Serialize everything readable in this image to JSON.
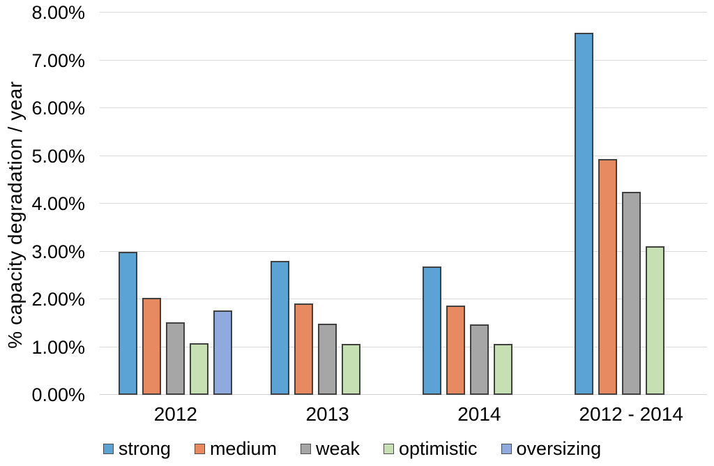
{
  "chart_data": {
    "type": "bar",
    "title": "",
    "xlabel": "",
    "ylabel": "% capacity degradation / year",
    "categories": [
      "2012",
      "2013",
      "2014",
      "2012 - 2014"
    ],
    "series": [
      {
        "name": "strong",
        "color": "#5BA3D5",
        "values": [
          3.0,
          2.8,
          2.68,
          7.57
        ]
      },
      {
        "name": "medium",
        "color": "#E78A61",
        "values": [
          2.03,
          1.91,
          1.87,
          4.93
        ]
      },
      {
        "name": "weak",
        "color": "#A6A6A6",
        "values": [
          1.52,
          1.49,
          1.47,
          4.25
        ]
      },
      {
        "name": "optimistic",
        "color": "#C6E0B4",
        "values": [
          1.08,
          1.07,
          1.06,
          3.11
        ]
      },
      {
        "name": "oversizing",
        "color": "#8FAADC",
        "values": [
          1.77,
          null,
          null,
          null
        ]
      }
    ],
    "y_axis": {
      "min": 0,
      "max": 8,
      "step": 1,
      "tick_labels": [
        "0.00%",
        "1.00%",
        "2.00%",
        "3.00%",
        "4.00%",
        "5.00%",
        "6.00%",
        "7.00%",
        "8.00%"
      ]
    },
    "grid": "horizontal",
    "legend_position": "bottom",
    "bar_border_color": "#404040",
    "grid_color": "#D9D9D9"
  }
}
